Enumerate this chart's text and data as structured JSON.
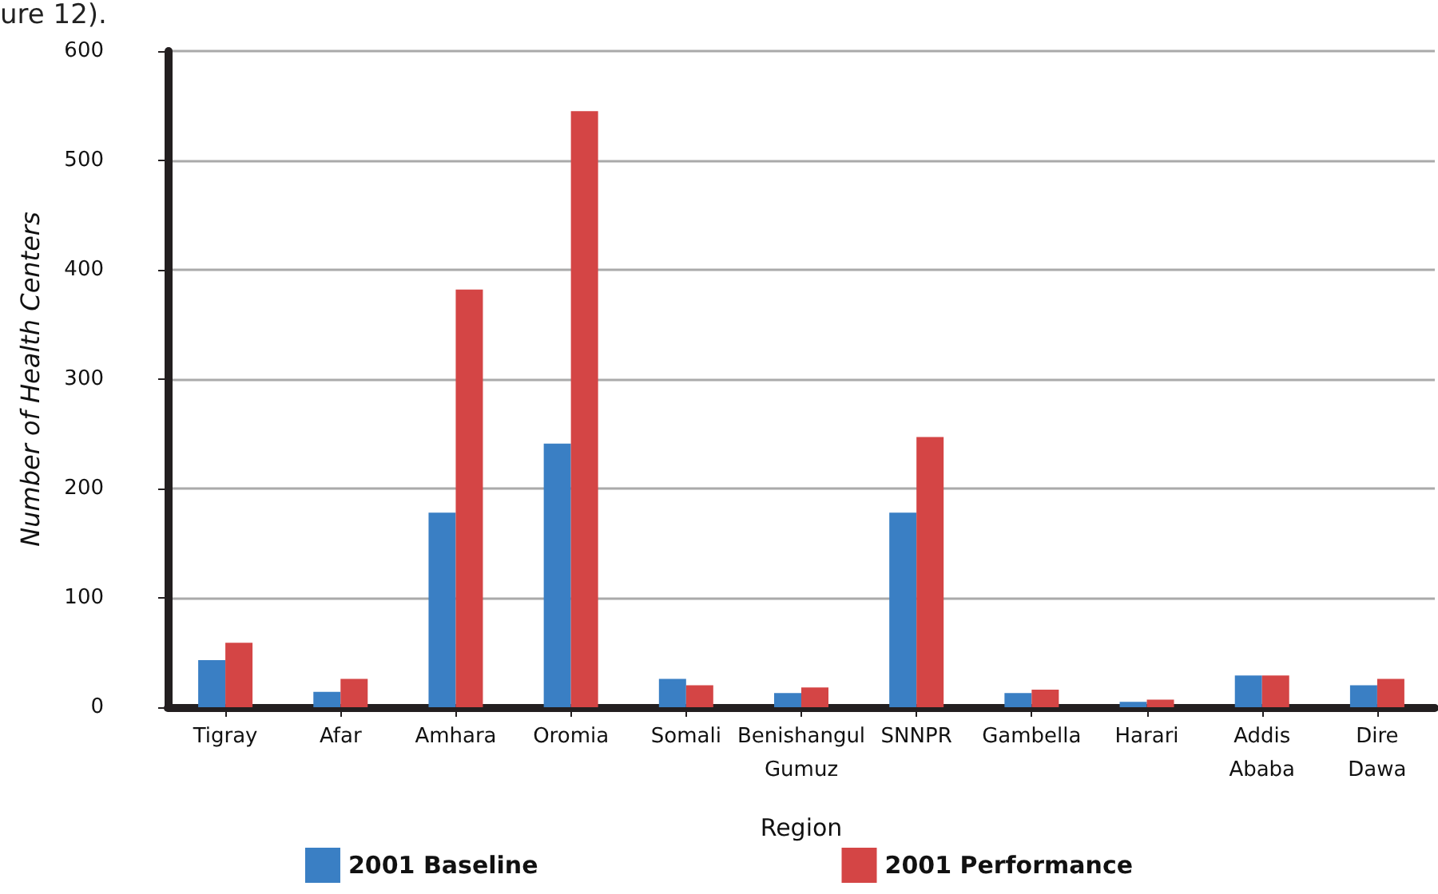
{
  "chart_data": {
    "type": "bar",
    "xlabel": "Region",
    "ylabel": "Number of Health Centers",
    "annotations": [
      "ure 12)."
    ],
    "categories": [
      "Tigray",
      "Afar",
      "Amhara",
      "Oromia",
      "Somali",
      "Benishangul Gumuz",
      "SNNPR",
      "Gambella",
      "Harari",
      "Addis Ababa",
      "Dire Dawa"
    ],
    "series": [
      {
        "name": "2001 Baseline",
        "color": "#3a7fc4",
        "values": [
          43,
          14,
          178,
          241,
          26,
          13,
          178,
          13,
          5,
          29,
          20
        ]
      },
      {
        "name": "2001 Performance",
        "color": "#d44545",
        "values": [
          59,
          26,
          382,
          545,
          20,
          18,
          247,
          16,
          7,
          29,
          26
        ]
      }
    ],
    "ylim": [
      0,
      600
    ],
    "yticks": [
      0,
      100,
      200,
      300,
      400,
      500,
      600
    ],
    "grid": "y",
    "legend": "bottom"
  }
}
